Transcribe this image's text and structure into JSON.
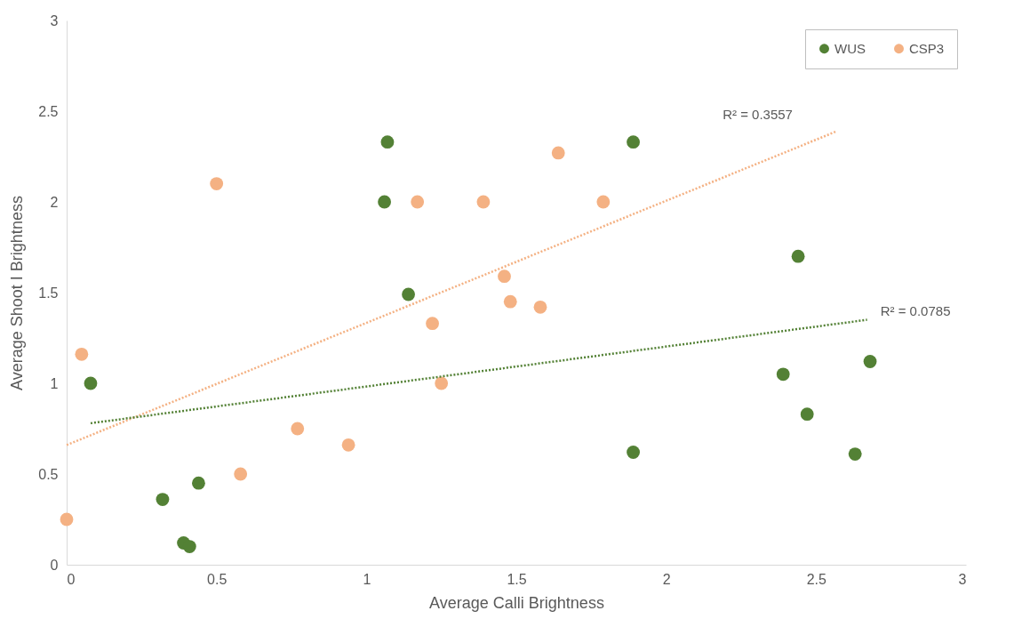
{
  "chart_data": {
    "type": "scatter",
    "xlabel": "Average Calli Brightness",
    "ylabel": "Average Shoot I Brightness",
    "xlim": [
      0,
      3
    ],
    "ylim": [
      0,
      3
    ],
    "xticks": [
      0,
      0.5,
      1,
      1.5,
      2,
      2.5,
      3
    ],
    "yticks": [
      0,
      0.5,
      1,
      1.5,
      2,
      2.5,
      3
    ],
    "grid": false,
    "legend": "top right",
    "marker": "circle",
    "series": [
      {
        "name": "WUS",
        "color": "#538135",
        "x": [
          0.08,
          0.32,
          0.39,
          0.41,
          0.44,
          1.06,
          1.07,
          1.14,
          1.89,
          1.89,
          2.39,
          2.44,
          2.47,
          2.68,
          2.63
        ],
        "values": [
          1.0,
          0.36,
          0.12,
          0.1,
          0.45,
          2.0,
          2.33,
          1.49,
          2.33,
          0.62,
          1.05,
          1.7,
          0.83,
          1.12,
          0.61
        ]
      },
      {
        "name": "CSP3",
        "color": "#f4b183",
        "x": [
          0,
          0.05,
          0.5,
          0.58,
          0.77,
          0.94,
          1.17,
          1.22,
          1.25,
          1.39,
          1.46,
          1.48,
          1.58,
          1.64,
          1.79
        ],
        "values": [
          0.25,
          1.16,
          2.1,
          0.5,
          0.75,
          0.66,
          2.0,
          1.33,
          1.0,
          2.0,
          1.59,
          1.45,
          1.42,
          2.27,
          2.0
        ]
      },
      {
        "type": "line",
        "color": "#f4b183",
        "line_style": "dotted",
        "marker": "none",
        "x": [
          0,
          2.57
        ],
        "values": [
          0.66,
          2.39
        ]
      },
      {
        "type": "line",
        "color": "#538135",
        "line_style": "dotted",
        "marker": "none",
        "x": [
          0.08,
          2.67
        ],
        "values": [
          0.78,
          1.35
        ]
      }
    ],
    "annotations": [
      "R² = 0.3557",
      "R² = 0.0785"
    ]
  }
}
